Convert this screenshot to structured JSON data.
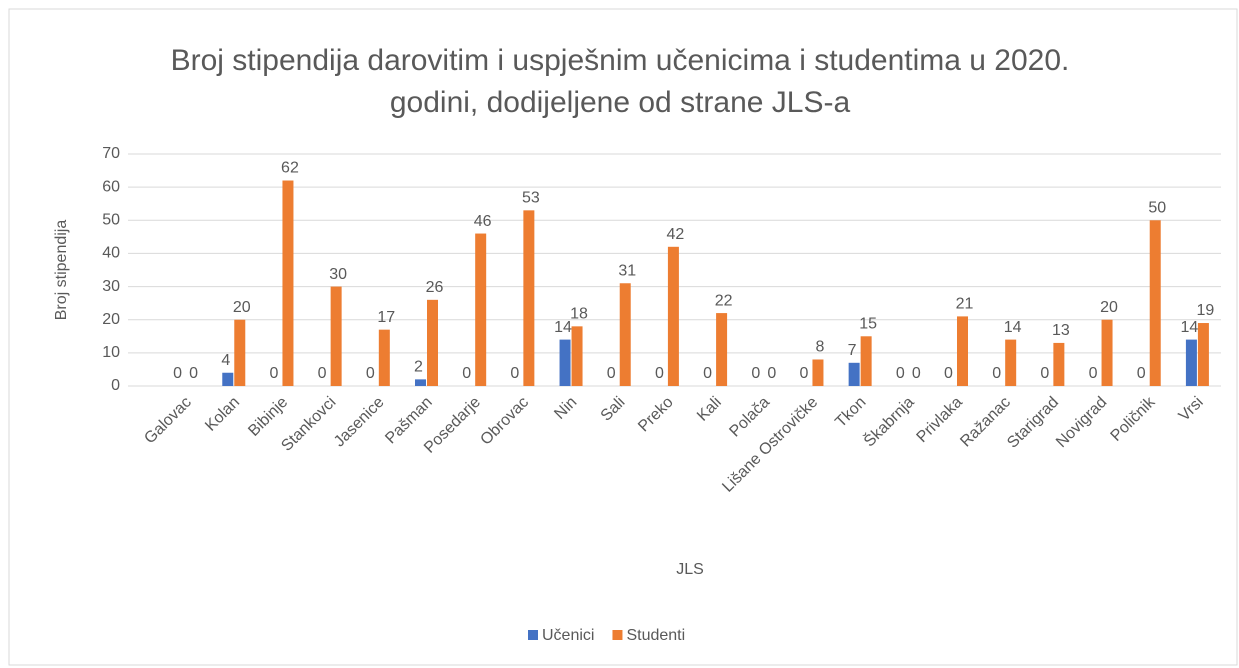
{
  "chart_data": {
    "type": "bar",
    "title": "Broj stipendija darovitim i uspješnim učenicima i studentima u 2020. godini, dodijeljene od strane JLS-a",
    "x_label": "JLS",
    "y_label": "Broj stipendija",
    "categories": [
      "Galovac",
      "Kolan",
      "Bibinje",
      "Stankovci",
      "Jasenice",
      "Pašman",
      "Posedarje",
      "Obrovac",
      "Nin",
      "Sali",
      "Preko",
      "Kali",
      "Polača",
      "Lišane Ostrovičke",
      "Tkon",
      "Škabrnja",
      "Privlaka",
      "Ražanac",
      "Starigrad",
      "Novigrad",
      "Poličnik",
      "Vrsi"
    ],
    "series": [
      {
        "name": "Učenici",
        "color": "#4472c4",
        "values": [
          0,
          4,
          0,
          0,
          0,
          2,
          0,
          0,
          14,
          0,
          0,
          0,
          0,
          0,
          7,
          0,
          0,
          0,
          0,
          0,
          0,
          14
        ]
      },
      {
        "name": "Studenti",
        "color": "#ed7d31",
        "values": [
          0,
          20,
          62,
          30,
          17,
          26,
          46,
          53,
          18,
          31,
          42,
          22,
          0,
          8,
          15,
          0,
          21,
          14,
          13,
          20,
          50,
          19
        ]
      }
    ],
    "ylim": [
      0,
      70
    ],
    "yticks": [
      0,
      10,
      20,
      30,
      40,
      50,
      60,
      70
    ],
    "grid": true,
    "legend": "bottom"
  }
}
